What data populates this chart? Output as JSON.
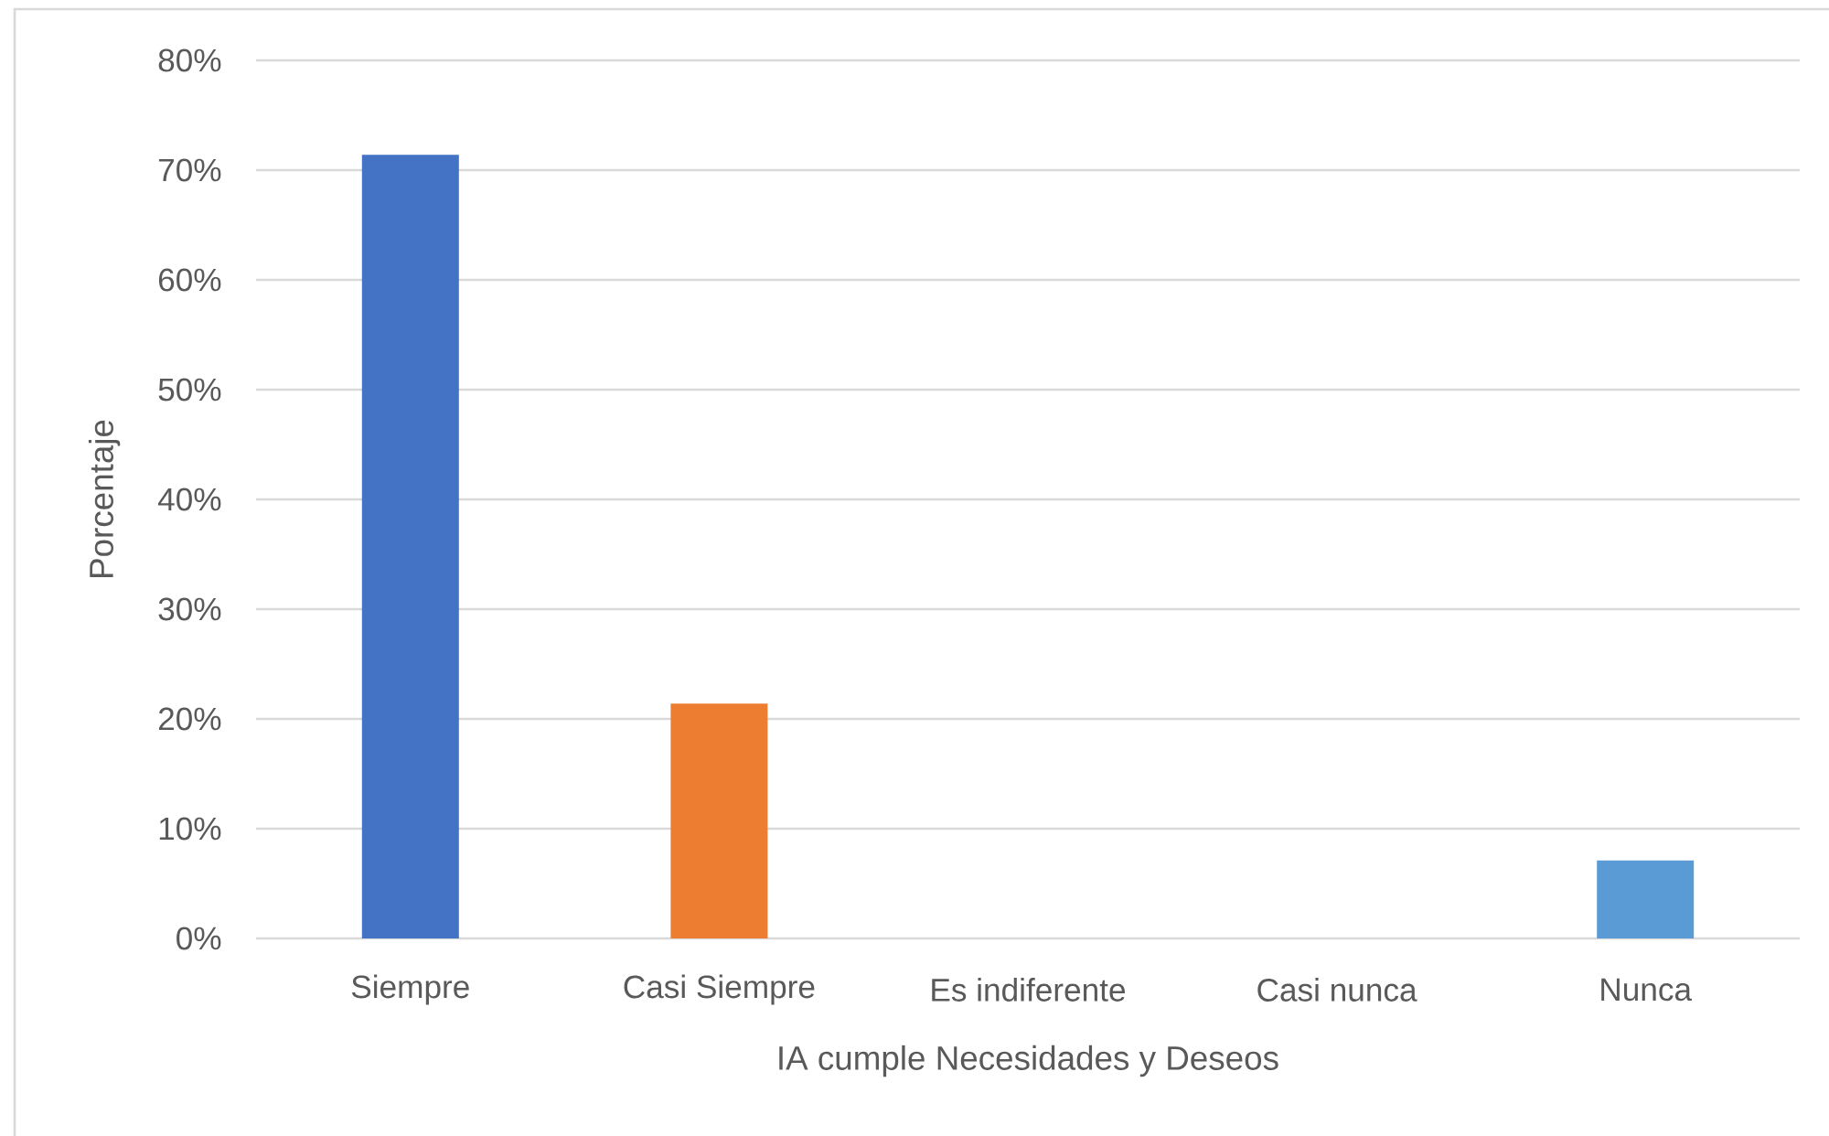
{
  "chart_data": {
    "type": "bar",
    "categories": [
      "Siempre",
      "Casi Siempre",
      "Es indiferente",
      "Casi nunca",
      "Nunca"
    ],
    "values": [
      71.4,
      21.4,
      0,
      0,
      7.1
    ],
    "colors": [
      "#4472c4",
      "#ed7d31",
      "#a5a5a5",
      "#ffc000",
      "#5b9bd5"
    ],
    "xlabel": "IA cumple Necesidades y Deseos",
    "ylabel": "Porcentaje",
    "ylim": [
      0,
      80
    ],
    "yticks": [
      {
        "value": 0,
        "label": "0%"
      },
      {
        "value": 10,
        "label": "10%"
      },
      {
        "value": 20,
        "label": "20%"
      },
      {
        "value": 30,
        "label": "30%"
      },
      {
        "value": 40,
        "label": "40%"
      },
      {
        "value": 50,
        "label": "50%"
      },
      {
        "value": 60,
        "label": "60%"
      },
      {
        "value": 70,
        "label": "70%"
      },
      {
        "value": 80,
        "label": "80%"
      }
    ],
    "grid": "y"
  }
}
